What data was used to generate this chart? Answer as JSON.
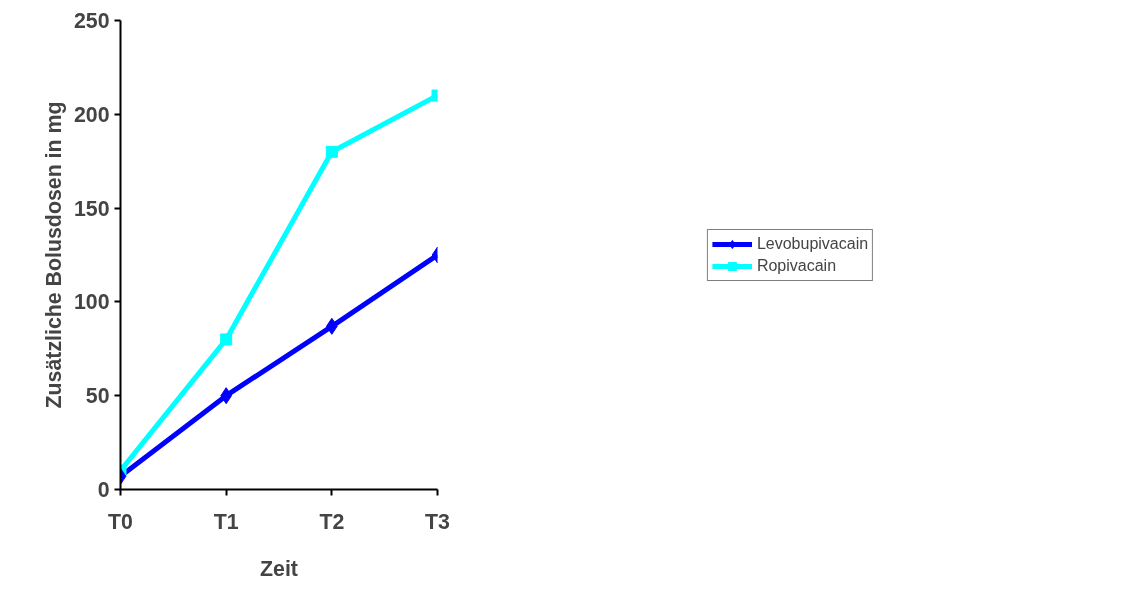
{
  "chart_data": {
    "type": "line",
    "xlabel": "Zeit",
    "ylabel": "Zusätzliche Bolusdosen in mg",
    "categories": [
      "T0",
      "T1",
      "T2",
      "T3"
    ],
    "series": [
      {
        "name": "Levobupivacain",
        "color": "#0000ff",
        "marker": "diamond",
        "values": [
          7,
          50,
          87,
          125
        ]
      },
      {
        "name": "Ropivacain",
        "color": "#00ffff",
        "marker": "square",
        "values": [
          10,
          80,
          180,
          210
        ]
      }
    ],
    "ylim": [
      0,
      250
    ],
    "yticks": [
      0,
      50,
      100,
      150,
      200,
      250
    ],
    "grid": false,
    "legend": "right"
  }
}
